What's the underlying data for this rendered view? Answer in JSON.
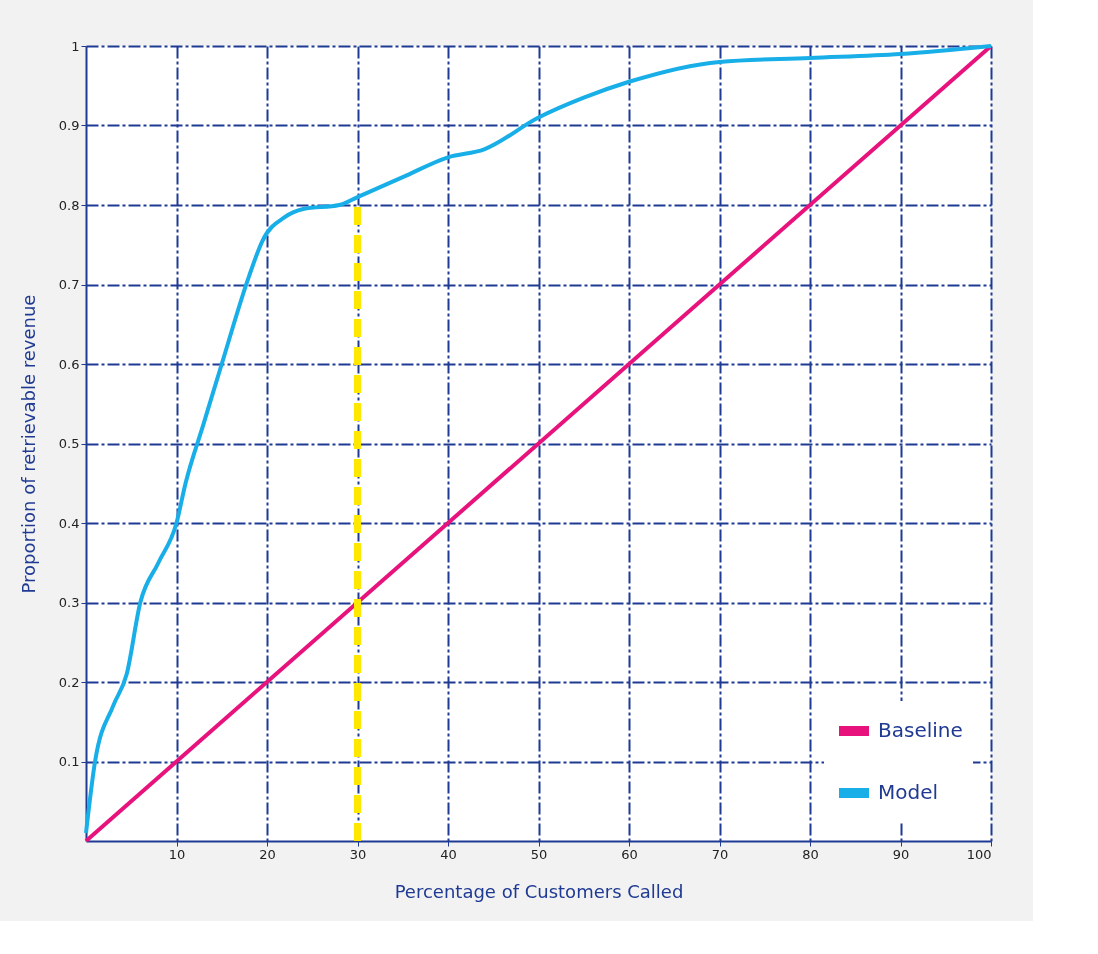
{
  "chart_data": {
    "type": "line",
    "xlabel": "Percentage of Customers Called",
    "ylabel": "Proportion of retrievable revenue",
    "xlim": [
      0,
      100
    ],
    "ylim": [
      0,
      1
    ],
    "xticks": [
      10,
      20,
      30,
      40,
      50,
      60,
      70,
      80,
      90,
      100
    ],
    "yticks": [
      0.1,
      0.2,
      0.3,
      0.4,
      0.5,
      0.6,
      0.7,
      0.8,
      0.9,
      1
    ],
    "grid": true,
    "legend": "bottom right",
    "line_style": "solid",
    "series": [
      {
        "name": "Baseline",
        "color": "#e8127c",
        "x": [
          0,
          100
        ],
        "values": [
          0,
          1
        ]
      },
      {
        "name": "Model",
        "color": "#18aee8",
        "x": [
          0,
          1,
          3,
          4.5,
          6,
          8,
          10,
          11,
          13,
          15,
          18,
          19.5,
          22,
          24,
          28,
          30,
          35,
          40,
          44,
          50,
          55,
          60,
          70,
          80,
          90,
          100
        ],
        "values": [
          0.01,
          0.1,
          0.17,
          0.21,
          0.3,
          0.35,
          0.4,
          0.45,
          0.525,
          0.6,
          0.71,
          0.755,
          0.785,
          0.795,
          0.8,
          0.81,
          0.835,
          0.86,
          0.87,
          0.91,
          0.935,
          0.955,
          0.98,
          0.985,
          0.99,
          1
        ]
      },
      {
        "color": "#ffe800",
        "x": [
          30,
          30
        ],
        "values": [
          0,
          0.8
        ],
        "line_style": "dashed"
      }
    ]
  }
}
